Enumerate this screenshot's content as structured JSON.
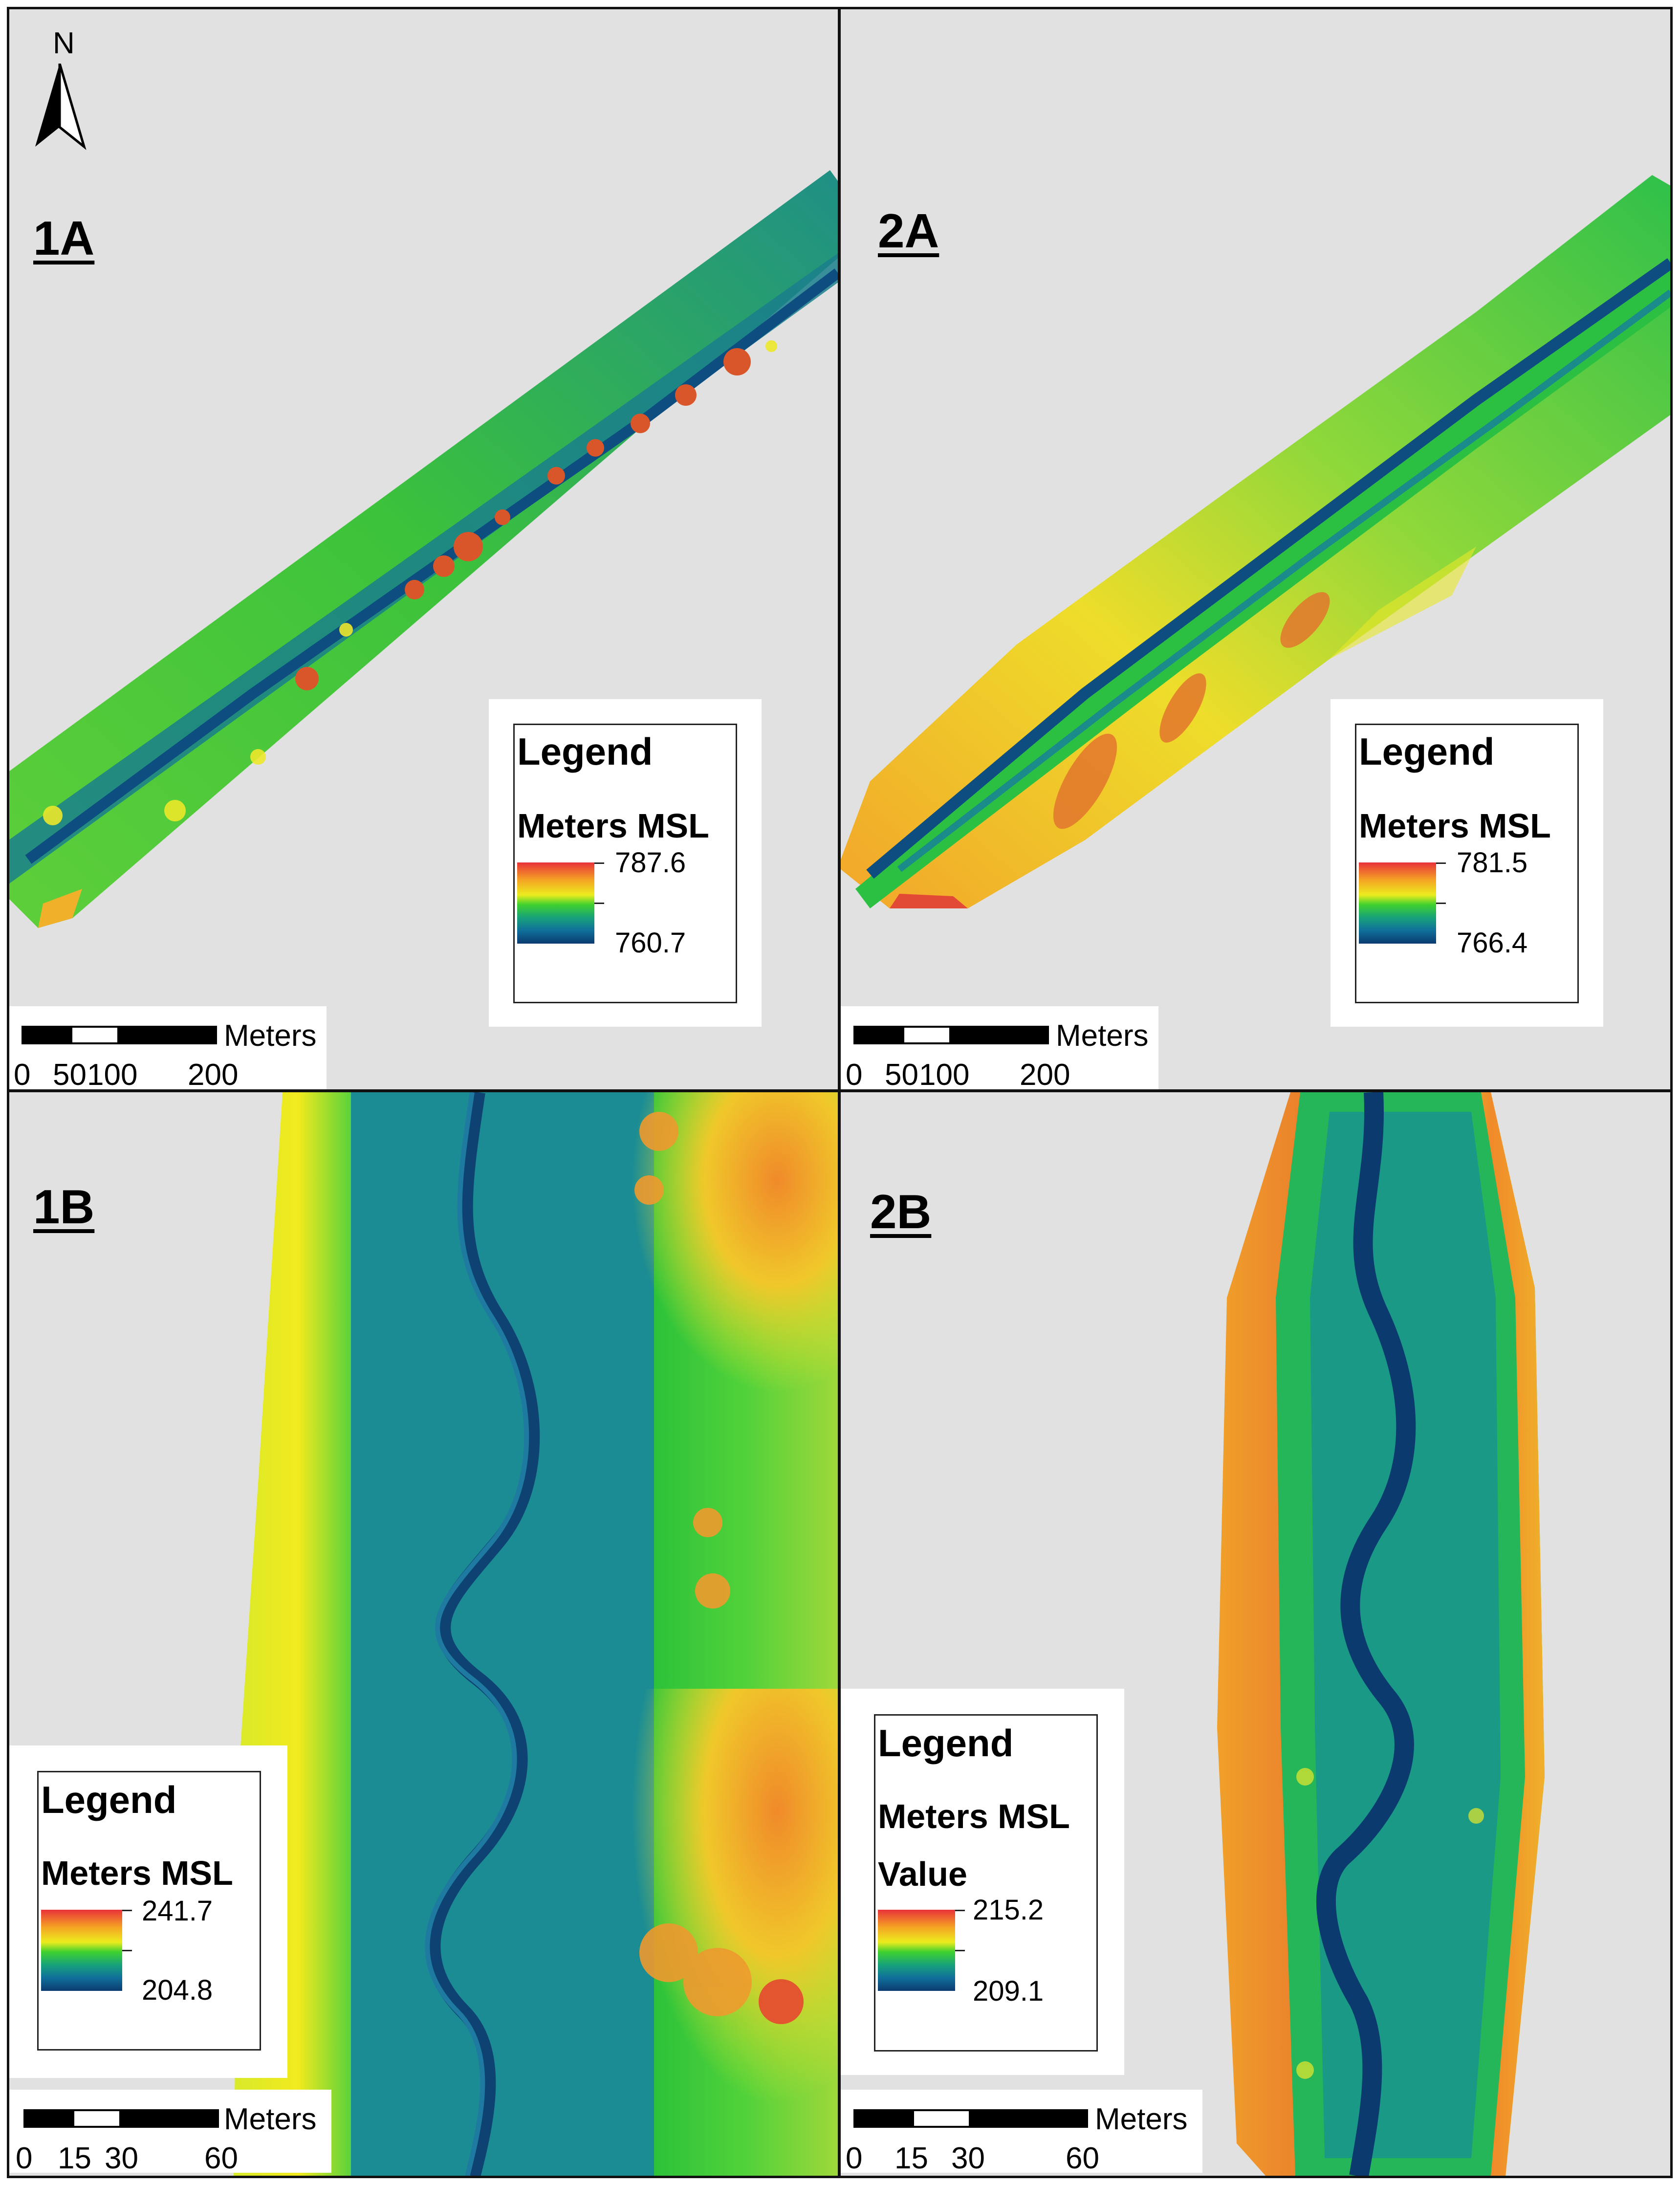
{
  "north_arrow": {
    "label": "N"
  },
  "panels": {
    "p1a": {
      "label": "1A",
      "legend": {
        "title": "Legend",
        "unit": "Meters MSL",
        "max": "787.6",
        "min": "760.7"
      },
      "scale": {
        "unit": "Meters",
        "ticks": [
          "0",
          "50",
          "100",
          "200"
        ]
      }
    },
    "p2a": {
      "label": "2A",
      "legend": {
        "title": "Legend",
        "unit": "Meters MSL",
        "max": "781.5",
        "min": "766.4"
      },
      "scale": {
        "unit": "Meters",
        "ticks": [
          "0",
          "50",
          "100",
          "200"
        ]
      }
    },
    "p1b": {
      "label": "1B",
      "legend": {
        "title": "Legend",
        "unit": "Meters MSL",
        "max": "241.7",
        "min": "204.8"
      },
      "scale": {
        "unit": "Meters",
        "ticks": [
          "0",
          "15",
          "30",
          "60"
        ]
      }
    },
    "p2b": {
      "label": "2B",
      "legend": {
        "title": "Legend",
        "unit": "Meters MSL",
        "field": "Value",
        "max": "215.2",
        "min": "209.1"
      },
      "scale": {
        "unit": "Meters",
        "ticks": [
          "0",
          "15",
          "30",
          "60"
        ]
      }
    }
  },
  "colors": {
    "background": "#e1e1e1",
    "ramp_high": "#e8323a",
    "ramp_mid_high": "#ecec1e",
    "ramp_mid": "#3fd12e",
    "ramp_low": "#0b3a6f"
  }
}
